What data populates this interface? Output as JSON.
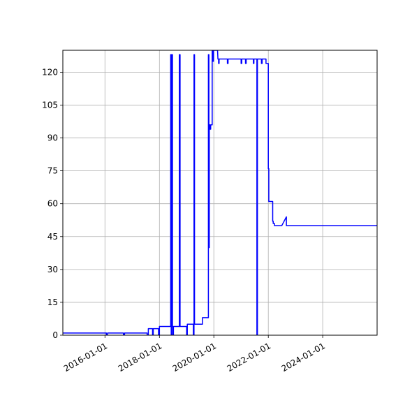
{
  "chart_data": {
    "type": "line",
    "title": "",
    "xlabel": "",
    "ylabel": "",
    "x_axis": {
      "kind": "date",
      "range": [
        "2014-06-15",
        "2025-12-31"
      ],
      "tick_labels": [
        "2016-01-01",
        "2018-01-01",
        "2020-01-01",
        "2022-01-01",
        "2024-01-01"
      ]
    },
    "y_axis": {
      "range": [
        0,
        130
      ],
      "tick_labels": [
        "0",
        "15",
        "30",
        "45",
        "60",
        "75",
        "90",
        "105",
        "120"
      ]
    },
    "grid": true,
    "legend": "none",
    "series": [
      {
        "color": "#0000ff",
        "points": [
          [
            "2014-06-15",
            1
          ],
          [
            "2016-01-20",
            1
          ],
          [
            "2016-01-20",
            0
          ],
          [
            "2016-02-05",
            0
          ],
          [
            "2016-02-05",
            1
          ],
          [
            "2016-09-05",
            1
          ],
          [
            "2016-09-05",
            0
          ],
          [
            "2016-09-20",
            0
          ],
          [
            "2016-09-20",
            1
          ],
          [
            "2017-07-20",
            1
          ],
          [
            "2017-07-20",
            0
          ],
          [
            "2017-08-05",
            0
          ],
          [
            "2017-08-05",
            3
          ],
          [
            "2017-10-01",
            3
          ],
          [
            "2017-10-01",
            0
          ],
          [
            "2017-10-10",
            0
          ],
          [
            "2017-10-10",
            3
          ],
          [
            "2017-12-20",
            3
          ],
          [
            "2017-12-20",
            0
          ],
          [
            "2018-01-01",
            0
          ],
          [
            "2018-01-01",
            4
          ],
          [
            "2018-06-01",
            4
          ],
          [
            "2018-06-01",
            128
          ],
          [
            "2018-06-08",
            128
          ],
          [
            "2018-06-08",
            0
          ],
          [
            "2018-06-15",
            0
          ],
          [
            "2018-06-15",
            128
          ],
          [
            "2018-06-25",
            128
          ],
          [
            "2018-06-25",
            4
          ],
          [
            "2018-07-01",
            4
          ],
          [
            "2018-07-01",
            0
          ],
          [
            "2018-07-08",
            0
          ],
          [
            "2018-07-08",
            4
          ],
          [
            "2018-09-25",
            4
          ],
          [
            "2018-09-25",
            128
          ],
          [
            "2018-10-05",
            128
          ],
          [
            "2018-10-05",
            4
          ],
          [
            "2019-01-01",
            4
          ],
          [
            "2019-01-01",
            0
          ],
          [
            "2019-01-10",
            0
          ],
          [
            "2019-01-10",
            5
          ],
          [
            "2019-04-01",
            5
          ],
          [
            "2019-04-01",
            0
          ],
          [
            "2019-04-10",
            0
          ],
          [
            "2019-04-10",
            128
          ],
          [
            "2019-04-17",
            128
          ],
          [
            "2019-04-17",
            5
          ],
          [
            "2019-08-01",
            5
          ],
          [
            "2019-08-01",
            8
          ],
          [
            "2019-10-20",
            8
          ],
          [
            "2019-10-20",
            128
          ],
          [
            "2019-10-27",
            128
          ],
          [
            "2019-10-27",
            40
          ],
          [
            "2019-11-01",
            40
          ],
          [
            "2019-11-01",
            96
          ],
          [
            "2019-11-10",
            96
          ],
          [
            "2019-11-10",
            94
          ],
          [
            "2019-11-20",
            94
          ],
          [
            "2019-11-20",
            96
          ],
          [
            "2019-12-10",
            96
          ],
          [
            "2019-12-10",
            130
          ],
          [
            "2019-12-20",
            130
          ],
          [
            "2019-12-20",
            125
          ],
          [
            "2019-12-28",
            125
          ],
          [
            "2019-12-28",
            130
          ],
          [
            "2020-02-20",
            130
          ],
          [
            "2020-02-25",
            126
          ],
          [
            "2020-03-05",
            126
          ],
          [
            "2020-03-05",
            124
          ],
          [
            "2020-03-12",
            124
          ],
          [
            "2020-03-12",
            126
          ],
          [
            "2020-07-01",
            126
          ],
          [
            "2020-07-01",
            124
          ],
          [
            "2020-07-10",
            124
          ],
          [
            "2020-07-10",
            126
          ],
          [
            "2021-01-01",
            126
          ],
          [
            "2021-01-01",
            124
          ],
          [
            "2021-01-10",
            124
          ],
          [
            "2021-01-10",
            126
          ],
          [
            "2021-03-01",
            126
          ],
          [
            "2021-03-01",
            124
          ],
          [
            "2021-03-10",
            124
          ],
          [
            "2021-03-10",
            126
          ],
          [
            "2021-06-15",
            126
          ],
          [
            "2021-06-15",
            124
          ],
          [
            "2021-06-22",
            124
          ],
          [
            "2021-06-22",
            126
          ],
          [
            "2021-08-01",
            126
          ],
          [
            "2021-08-01",
            0
          ],
          [
            "2021-08-08",
            0
          ],
          [
            "2021-08-08",
            126
          ],
          [
            "2021-10-01",
            126
          ],
          [
            "2021-10-01",
            124
          ],
          [
            "2021-10-10",
            124
          ],
          [
            "2021-10-10",
            126
          ],
          [
            "2021-12-01",
            126
          ],
          [
            "2021-12-01",
            124
          ],
          [
            "2022-01-01",
            124
          ],
          [
            "2022-01-01",
            76
          ],
          [
            "2022-01-08",
            76
          ],
          [
            "2022-01-08",
            61
          ],
          [
            "2022-03-01",
            61
          ],
          [
            "2022-03-01",
            52
          ],
          [
            "2022-03-08",
            52
          ],
          [
            "2022-03-08",
            51
          ],
          [
            "2022-03-25",
            51
          ],
          [
            "2022-03-25",
            50
          ],
          [
            "2022-07-01",
            50
          ],
          [
            "2022-09-01",
            54
          ],
          [
            "2022-09-01",
            50
          ],
          [
            "2025-12-31",
            50
          ]
        ]
      }
    ]
  }
}
